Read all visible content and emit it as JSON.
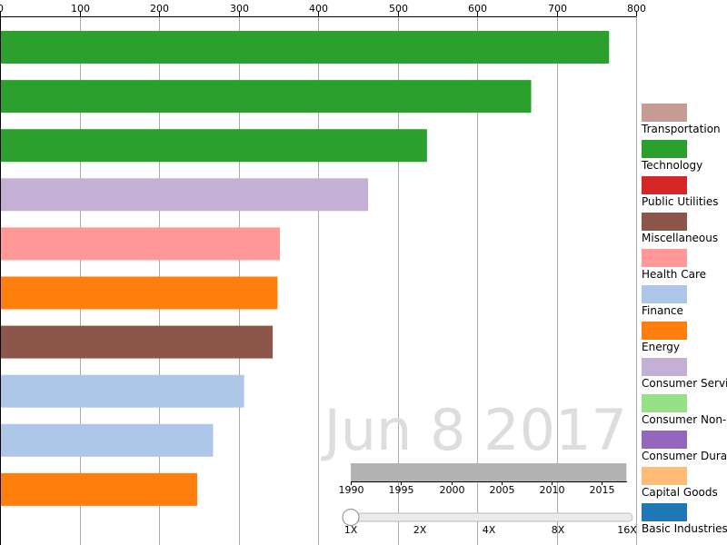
{
  "chart_data": {
    "type": "bar",
    "orientation": "horizontal",
    "x_axis": {
      "range": [
        0,
        800
      ],
      "ticks": [
        0,
        100,
        200,
        300,
        400,
        500,
        600,
        700,
        800
      ],
      "tick_labels": [
        "0",
        "100",
        "200",
        "300",
        "400",
        "500",
        "600",
        "700",
        "800"
      ],
      "position": "top",
      "grid": true
    },
    "bars": [
      {
        "value": 766,
        "color": "#2ca02c",
        "category": "Technology"
      },
      {
        "value": 668,
        "color": "#2ca02c",
        "category": "Technology"
      },
      {
        "value": 537,
        "color": "#2ca02c",
        "category": "Technology"
      },
      {
        "value": 463,
        "color": "#c5b0d5",
        "category": "Consumer Services"
      },
      {
        "value": 352,
        "color": "#ff9896",
        "category": "Health Care"
      },
      {
        "value": 349,
        "color": "#ff7f0e",
        "category": "Energy"
      },
      {
        "value": 343,
        "color": "#8c564b",
        "category": "Miscellaneous"
      },
      {
        "value": 307,
        "color": "#aec7e8",
        "category": "Finance"
      },
      {
        "value": 268,
        "color": "#aec7e8",
        "category": "Finance"
      },
      {
        "value": 248,
        "color": "#ff7f0e",
        "category": "Energy"
      }
    ],
    "legend": {
      "position": "right",
      "items": [
        {
          "label": "Transportation",
          "color": "#c49c94"
        },
        {
          "label": "Technology",
          "color": "#2ca02c"
        },
        {
          "label": "Public Utilities",
          "color": "#d62728"
        },
        {
          "label": "Miscellaneous",
          "color": "#8c564b"
        },
        {
          "label": "Health Care",
          "color": "#ff9896"
        },
        {
          "label": "Finance",
          "color": "#aec7e8"
        },
        {
          "label": "Energy",
          "color": "#ff7f0e"
        },
        {
          "label": "Consumer Services",
          "color": "#c5b0d5"
        },
        {
          "label": "Consumer Non-Durables",
          "color": "#98df8a"
        },
        {
          "label": "Consumer Durables",
          "color": "#9467bd"
        },
        {
          "label": "Capital Goods",
          "color": "#ffbb78"
        },
        {
          "label": "Basic Industries",
          "color": "#1f77b4"
        }
      ]
    },
    "date_watermark": "Jun 8 2017",
    "timeline": {
      "range": [
        1990,
        2017.5
      ],
      "current": 2017.44,
      "ticks": [
        1990,
        1995,
        2000,
        2005,
        2010,
        2015
      ],
      "tick_labels": [
        "1990",
        "1995",
        "2000",
        "2005",
        "2010",
        "2015"
      ]
    },
    "speed_slider": {
      "labels": [
        "1X",
        "2X",
        "4X",
        "8X",
        "16X"
      ],
      "value": "1X"
    }
  }
}
